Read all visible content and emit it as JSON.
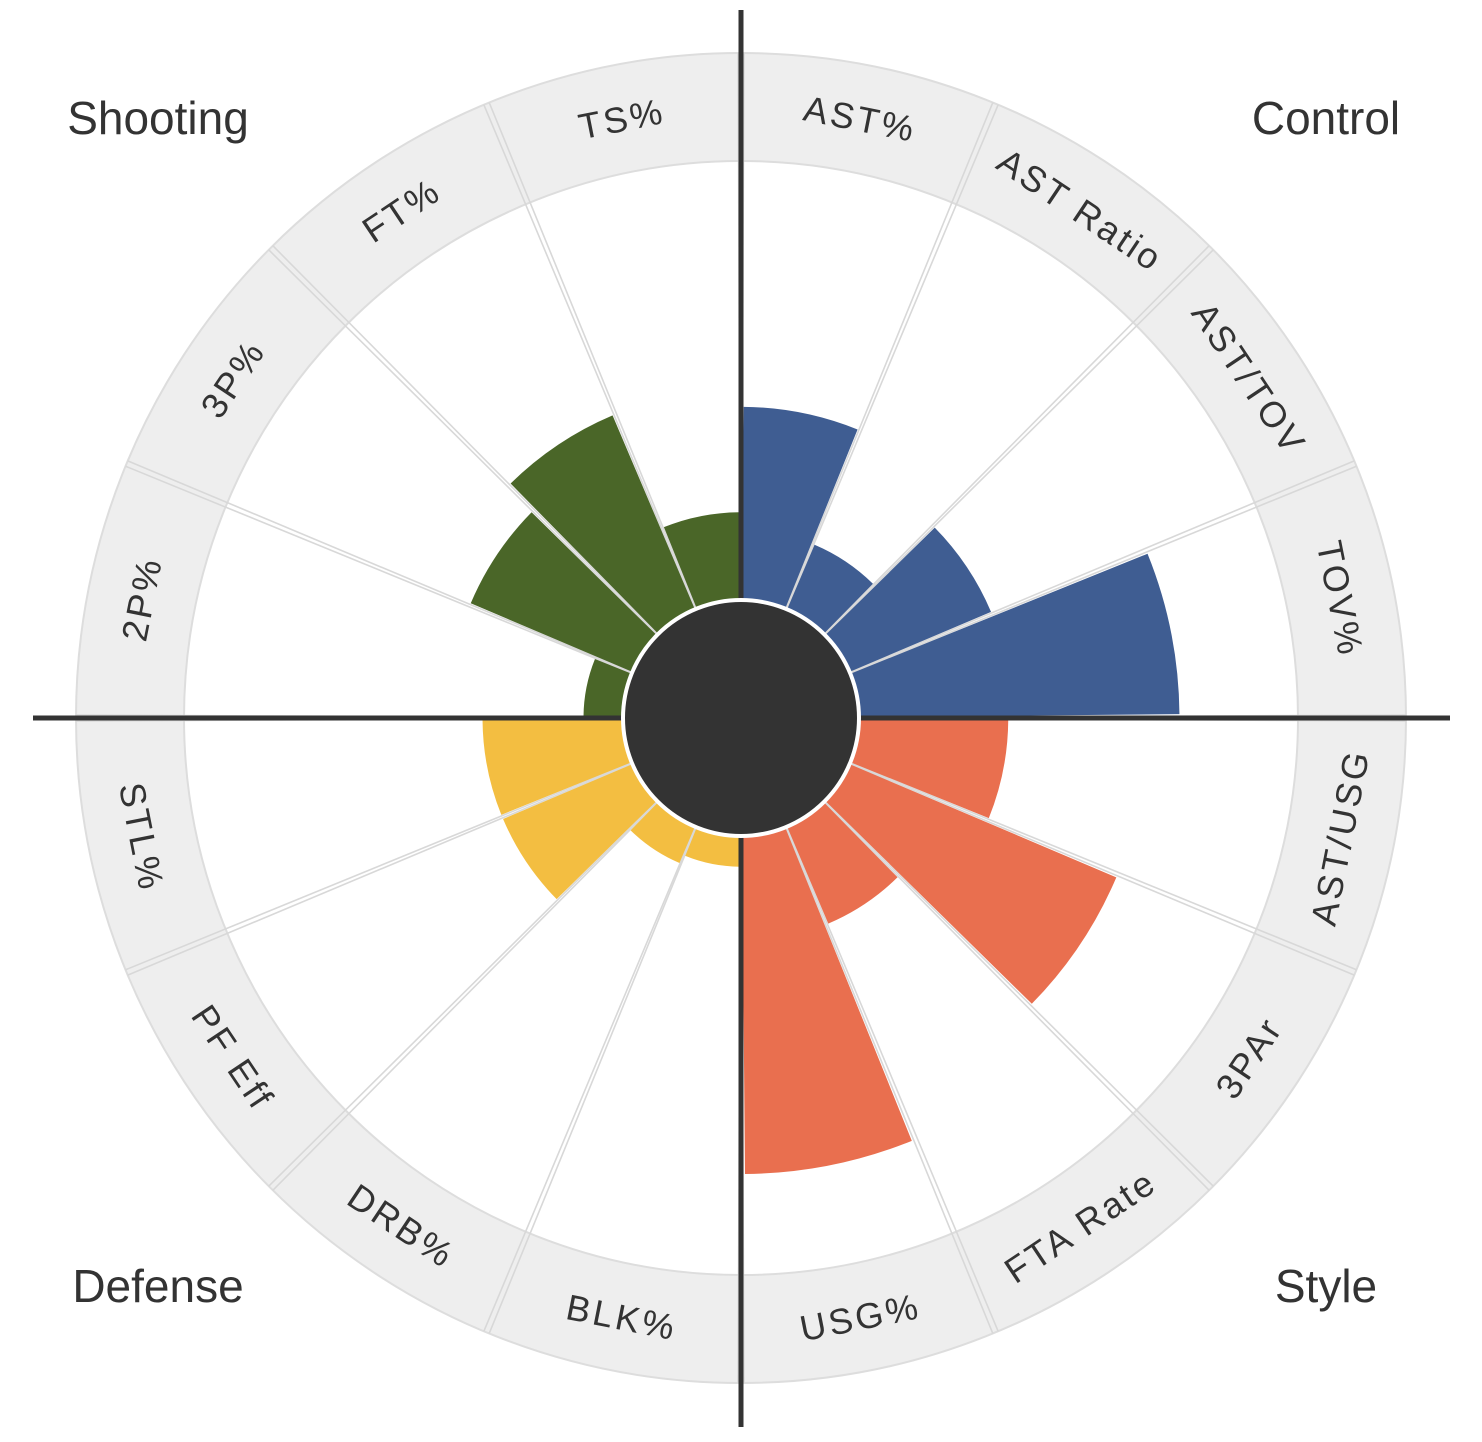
{
  "chart_data": {
    "type": "polar-bar",
    "rlim": [
      0,
      100
    ],
    "categories": [
      {
        "name": "Shooting",
        "color": "#4a6628",
        "position": "top-left"
      },
      {
        "name": "Control",
        "color": "#3f5d92",
        "position": "top-right"
      },
      {
        "name": "Style",
        "color": "#e96f4f",
        "position": "bottom-right"
      },
      {
        "name": "Defense",
        "color": "#f3be41",
        "position": "bottom-left"
      }
    ],
    "metrics": [
      {
        "label": "AST%",
        "category": "Control",
        "value": 44
      },
      {
        "label": "AST Ratio",
        "category": "Control",
        "value": 16
      },
      {
        "label": "AST/TOV",
        "category": "Control",
        "value": 35
      },
      {
        "label": "TOV%",
        "category": "Control",
        "value": 73
      },
      {
        "label": "AST/USG",
        "category": "Style",
        "value": 34
      },
      {
        "label": "3PAr",
        "category": "Style",
        "value": 66
      },
      {
        "label": "FTA Rate",
        "category": "Style",
        "value": 24
      },
      {
        "label": "USG%",
        "category": "Style",
        "value": 77
      },
      {
        "label": "BLK%",
        "category": "Defense",
        "value": 7
      },
      {
        "label": "DRB%",
        "category": "Defense",
        "value": 9
      },
      {
        "label": "PF Eff",
        "category": "Defense",
        "value": 32
      },
      {
        "label": "STL%",
        "category": "Defense",
        "value": 32
      },
      {
        "label": "2P%",
        "category": "Shooting",
        "value": 9
      },
      {
        "label": "3P%",
        "category": "Shooting",
        "value": 40
      },
      {
        "label": "FT%",
        "category": "Shooting",
        "value": 48
      },
      {
        "label": "TS%",
        "category": "Shooting",
        "value": 20
      }
    ]
  }
}
